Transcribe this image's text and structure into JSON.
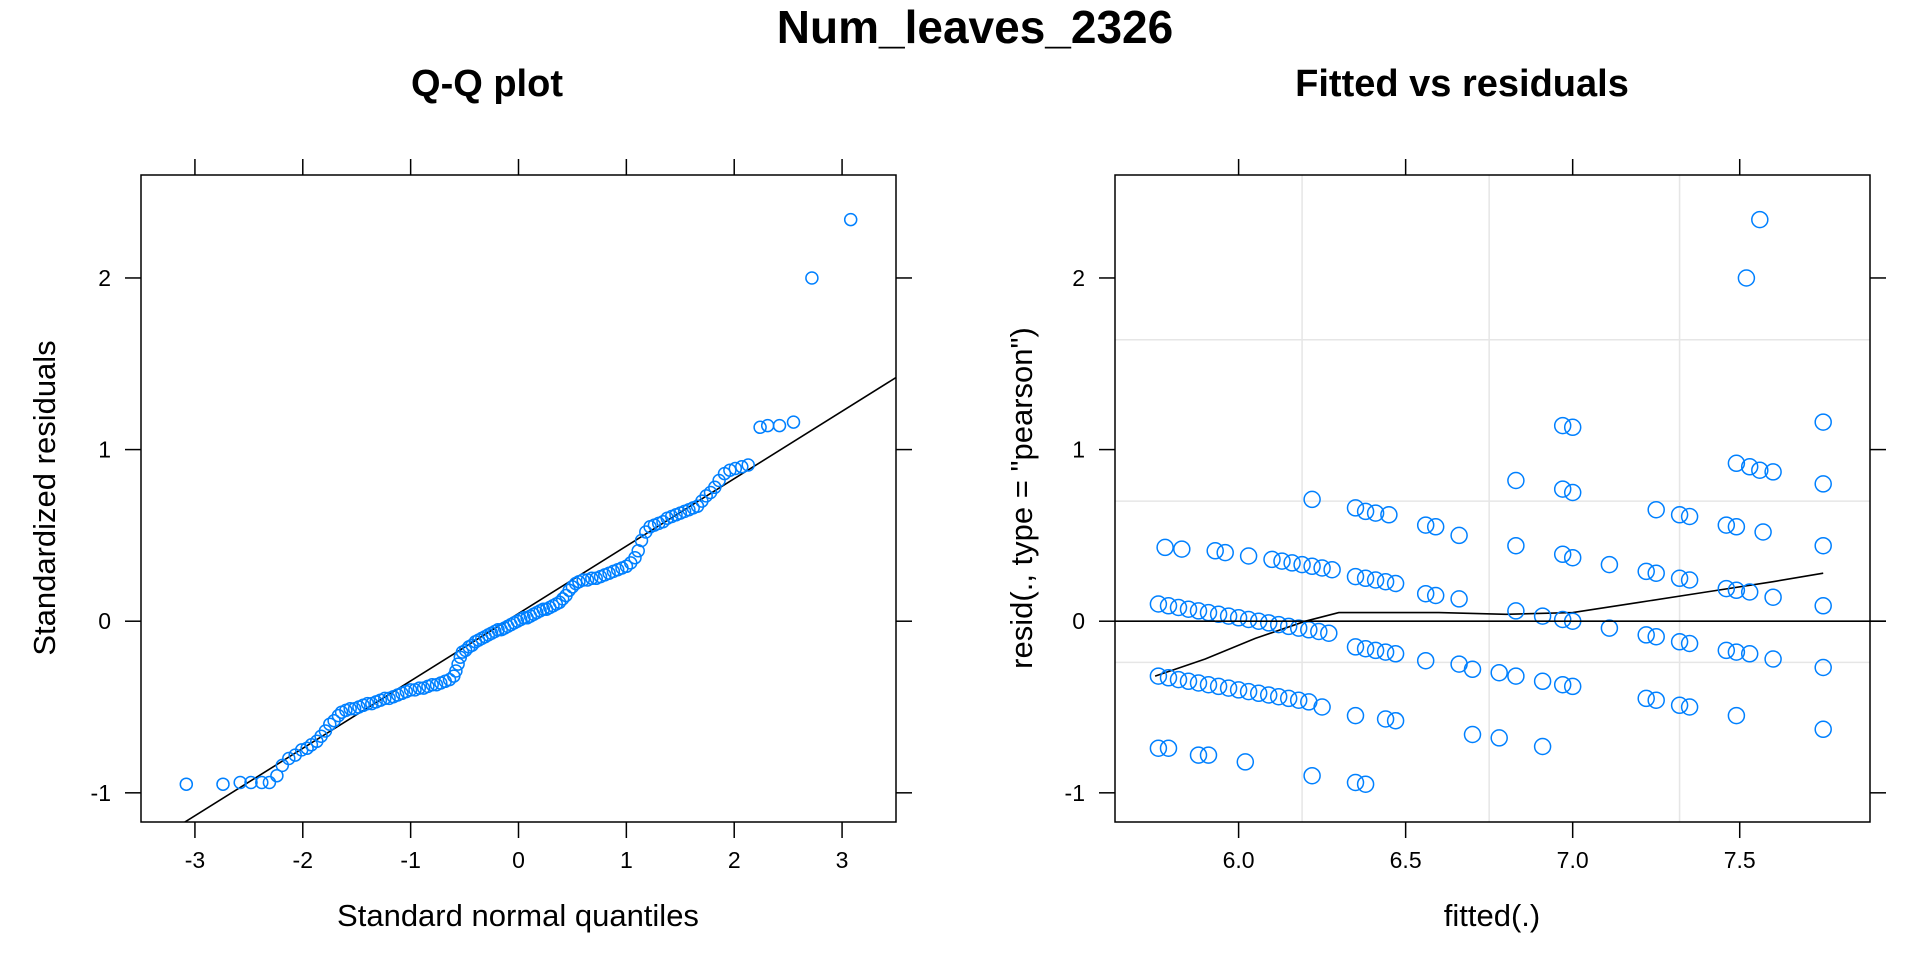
{
  "title": "Num_leaves_2326",
  "colors": {
    "points": "#0080ff",
    "lines": "#000000",
    "grid": "#e6e6e6"
  },
  "chart_data": [
    {
      "type": "scatter",
      "title": "Q-Q plot",
      "xlabel": "Standard normal quantiles",
      "ylabel": "Standardized residuals",
      "xlim": [
        -3.5,
        3.5
      ],
      "ylim": [
        -1.17,
        2.6
      ],
      "xticks": [
        -3,
        -2,
        -1,
        0,
        1,
        2,
        3
      ],
      "xtick_labels": [
        "-3",
        "-2",
        "-1",
        "0",
        "1",
        "2",
        "3"
      ],
      "yticks": [
        -1,
        0,
        1,
        2
      ],
      "ytick_labels": [
        "-1",
        "0",
        "1",
        "2"
      ],
      "grid": false,
      "reference_line": {
        "x": [
          -3.5,
          3.5
        ],
        "y": [
          -1.33,
          1.42
        ]
      },
      "points": [
        [
          -3.08,
          -0.95
        ],
        [
          -2.74,
          -0.95
        ],
        [
          -2.58,
          -0.94
        ],
        [
          -2.48,
          -0.94
        ],
        [
          -2.38,
          -0.94
        ],
        [
          -2.31,
          -0.94
        ],
        [
          -2.24,
          -0.9
        ],
        [
          -2.19,
          -0.84
        ],
        [
          -2.13,
          -0.8
        ],
        [
          -2.07,
          -0.78
        ],
        [
          -2.01,
          -0.75
        ],
        [
          -1.96,
          -0.74
        ],
        [
          -1.92,
          -0.72
        ],
        [
          -1.87,
          -0.7
        ],
        [
          -1.83,
          -0.67
        ],
        [
          -1.79,
          -0.64
        ],
        [
          -1.75,
          -0.6
        ],
        [
          -1.71,
          -0.58
        ],
        [
          -1.67,
          -0.55
        ],
        [
          -1.64,
          -0.53
        ],
        [
          -1.6,
          -0.52
        ],
        [
          -1.56,
          -0.51
        ],
        [
          -1.52,
          -0.51
        ],
        [
          -1.48,
          -0.5
        ],
        [
          -1.44,
          -0.49
        ],
        [
          -1.4,
          -0.48
        ],
        [
          -1.36,
          -0.48
        ],
        [
          -1.32,
          -0.47
        ],
        [
          -1.28,
          -0.46
        ],
        [
          -1.24,
          -0.45
        ],
        [
          -1.2,
          -0.45
        ],
        [
          -1.16,
          -0.44
        ],
        [
          -1.12,
          -0.43
        ],
        [
          -1.08,
          -0.42
        ],
        [
          -1.04,
          -0.41
        ],
        [
          -1.0,
          -0.4
        ],
        [
          -0.96,
          -0.4
        ],
        [
          -0.92,
          -0.39
        ],
        [
          -0.88,
          -0.39
        ],
        [
          -0.84,
          -0.38
        ],
        [
          -0.8,
          -0.37
        ],
        [
          -0.76,
          -0.37
        ],
        [
          -0.72,
          -0.36
        ],
        [
          -0.68,
          -0.35
        ],
        [
          -0.64,
          -0.34
        ],
        [
          -0.6,
          -0.32
        ],
        [
          -0.58,
          -0.29
        ],
        [
          -0.56,
          -0.25
        ],
        [
          -0.54,
          -0.21
        ],
        [
          -0.52,
          -0.18
        ],
        [
          -0.49,
          -0.17
        ],
        [
          -0.46,
          -0.15
        ],
        [
          -0.43,
          -0.14
        ],
        [
          -0.4,
          -0.12
        ],
        [
          -0.37,
          -0.11
        ],
        [
          -0.34,
          -0.1
        ],
        [
          -0.31,
          -0.09
        ],
        [
          -0.28,
          -0.08
        ],
        [
          -0.25,
          -0.07
        ],
        [
          -0.22,
          -0.06
        ],
        [
          -0.19,
          -0.05
        ],
        [
          -0.16,
          -0.05
        ],
        [
          -0.13,
          -0.04
        ],
        [
          -0.1,
          -0.03
        ],
        [
          -0.07,
          -0.02
        ],
        [
          -0.04,
          -0.01
        ],
        [
          -0.01,
          0.0
        ],
        [
          0.02,
          0.01
        ],
        [
          0.05,
          0.02
        ],
        [
          0.08,
          0.02
        ],
        [
          0.11,
          0.03
        ],
        [
          0.14,
          0.04
        ],
        [
          0.17,
          0.05
        ],
        [
          0.2,
          0.06
        ],
        [
          0.23,
          0.07
        ],
        [
          0.26,
          0.07
        ],
        [
          0.29,
          0.08
        ],
        [
          0.32,
          0.09
        ],
        [
          0.35,
          0.1
        ],
        [
          0.38,
          0.11
        ],
        [
          0.41,
          0.13
        ],
        [
          0.44,
          0.15
        ],
        [
          0.47,
          0.18
        ],
        [
          0.5,
          0.2
        ],
        [
          0.53,
          0.22
        ],
        [
          0.56,
          0.23
        ],
        [
          0.6,
          0.24
        ],
        [
          0.64,
          0.24
        ],
        [
          0.68,
          0.25
        ],
        [
          0.72,
          0.25
        ],
        [
          0.76,
          0.26
        ],
        [
          0.8,
          0.27
        ],
        [
          0.84,
          0.28
        ],
        [
          0.88,
          0.29
        ],
        [
          0.92,
          0.3
        ],
        [
          0.96,
          0.31
        ],
        [
          1.0,
          0.32
        ],
        [
          1.04,
          0.34
        ],
        [
          1.08,
          0.37
        ],
        [
          1.11,
          0.41
        ],
        [
          1.14,
          0.47
        ],
        [
          1.18,
          0.52
        ],
        [
          1.22,
          0.55
        ],
        [
          1.26,
          0.56
        ],
        [
          1.3,
          0.57
        ],
        [
          1.34,
          0.58
        ],
        [
          1.38,
          0.6
        ],
        [
          1.42,
          0.61
        ],
        [
          1.46,
          0.62
        ],
        [
          1.5,
          0.63
        ],
        [
          1.54,
          0.64
        ],
        [
          1.58,
          0.65
        ],
        [
          1.62,
          0.66
        ],
        [
          1.66,
          0.67
        ],
        [
          1.7,
          0.7
        ],
        [
          1.74,
          0.73
        ],
        [
          1.78,
          0.75
        ],
        [
          1.82,
          0.78
        ],
        [
          1.86,
          0.82
        ],
        [
          1.91,
          0.86
        ],
        [
          1.96,
          0.88
        ],
        [
          2.01,
          0.89
        ],
        [
          2.07,
          0.9
        ],
        [
          2.13,
          0.91
        ],
        [
          2.24,
          1.13
        ],
        [
          2.31,
          1.14
        ],
        [
          2.42,
          1.14
        ],
        [
          2.55,
          1.16
        ],
        [
          2.72,
          2.0
        ],
        [
          3.08,
          2.34
        ]
      ]
    },
    {
      "type": "scatter",
      "title": "Fitted vs residuals",
      "xlabel": "fitted(.)",
      "ylabel": "resid(., type = \"pearson\")",
      "xlim": [
        5.63,
        7.89
      ],
      "ylim": [
        -1.17,
        2.6
      ],
      "xticks": [
        6.0,
        6.5,
        7.0,
        7.5
      ],
      "xtick_labels": [
        "6.0",
        "6.5",
        "7.0",
        "7.5"
      ],
      "yticks": [
        -1,
        0,
        1,
        2
      ],
      "ytick_labels": [
        "-1",
        "0",
        "1",
        "2"
      ],
      "grid": true,
      "grid_x": [
        6.19,
        6.75,
        7.32
      ],
      "grid_y": [
        -0.24,
        0.7,
        1.64
      ],
      "hline": 0,
      "smooth_line": {
        "x": [
          5.75,
          5.9,
          6.05,
          6.2,
          6.3,
          6.4,
          6.6,
          6.8,
          7.0,
          7.2,
          7.4,
          7.6,
          7.75
        ],
        "y": [
          -0.32,
          -0.22,
          -0.1,
          0.0,
          0.05,
          0.05,
          0.05,
          0.04,
          0.05,
          0.11,
          0.17,
          0.23,
          0.28
        ]
      },
      "points": [
        [
          5.76,
          0.1
        ],
        [
          5.79,
          0.09
        ],
        [
          5.82,
          0.08
        ],
        [
          5.85,
          0.07
        ],
        [
          5.88,
          0.06
        ],
        [
          5.91,
          0.05
        ],
        [
          5.94,
          0.04
        ],
        [
          5.97,
          0.03
        ],
        [
          6.0,
          0.02
        ],
        [
          6.03,
          0.01
        ],
        [
          6.06,
          0.0
        ],
        [
          6.09,
          -0.01
        ],
        [
          6.12,
          -0.02
        ],
        [
          6.15,
          -0.03
        ],
        [
          6.18,
          -0.04
        ],
        [
          6.21,
          -0.05
        ],
        [
          6.24,
          -0.06
        ],
        [
          6.27,
          -0.07
        ],
        [
          5.76,
          -0.32
        ],
        [
          5.79,
          -0.33
        ],
        [
          5.82,
          -0.34
        ],
        [
          5.85,
          -0.35
        ],
        [
          5.88,
          -0.36
        ],
        [
          5.91,
          -0.37
        ],
        [
          5.94,
          -0.38
        ],
        [
          5.97,
          -0.39
        ],
        [
          6.0,
          -0.4
        ],
        [
          6.03,
          -0.41
        ],
        [
          6.06,
          -0.42
        ],
        [
          6.09,
          -0.43
        ],
        [
          6.12,
          -0.44
        ],
        [
          6.15,
          -0.45
        ],
        [
          6.18,
          -0.46
        ],
        [
          6.21,
          -0.47
        ],
        [
          6.25,
          -0.5
        ],
        [
          5.78,
          0.43
        ],
        [
          5.83,
          0.42
        ],
        [
          5.93,
          0.41
        ],
        [
          5.96,
          0.4
        ],
        [
          6.03,
          0.38
        ],
        [
          6.1,
          0.36
        ],
        [
          6.13,
          0.35
        ],
        [
          6.16,
          0.34
        ],
        [
          6.19,
          0.33
        ],
        [
          6.22,
          0.32
        ],
        [
          6.25,
          0.31
        ],
        [
          6.28,
          0.3
        ],
        [
          5.76,
          -0.74
        ],
        [
          5.79,
          -0.74
        ],
        [
          5.88,
          -0.78
        ],
        [
          5.91,
          -0.78
        ],
        [
          6.02,
          -0.82
        ],
        [
          6.22,
          0.71
        ],
        [
          6.22,
          -0.9
        ],
        [
          6.35,
          -0.94
        ],
        [
          6.38,
          -0.95
        ],
        [
          6.35,
          0.66
        ],
        [
          6.38,
          0.64
        ],
        [
          6.41,
          0.63
        ],
        [
          6.45,
          0.62
        ],
        [
          6.35,
          0.26
        ],
        [
          6.38,
          0.25
        ],
        [
          6.41,
          0.24
        ],
        [
          6.44,
          0.23
        ],
        [
          6.47,
          0.22
        ],
        [
          6.35,
          -0.15
        ],
        [
          6.38,
          -0.16
        ],
        [
          6.41,
          -0.17
        ],
        [
          6.44,
          -0.18
        ],
        [
          6.47,
          -0.19
        ],
        [
          6.35,
          -0.55
        ],
        [
          6.44,
          -0.57
        ],
        [
          6.47,
          -0.58
        ],
        [
          6.56,
          0.56
        ],
        [
          6.59,
          0.55
        ],
        [
          6.56,
          0.16
        ],
        [
          6.59,
          0.15
        ],
        [
          6.56,
          -0.23
        ],
        [
          6.66,
          0.5
        ],
        [
          6.66,
          0.13
        ],
        [
          6.66,
          -0.25
        ],
        [
          6.7,
          -0.28
        ],
        [
          6.7,
          -0.66
        ],
        [
          6.78,
          -0.68
        ],
        [
          6.83,
          0.82
        ],
        [
          6.83,
          0.44
        ],
        [
          6.83,
          0.06
        ],
        [
          6.83,
          -0.32
        ],
        [
          6.78,
          -0.3
        ],
        [
          6.91,
          -0.73
        ],
        [
          6.91,
          0.03
        ],
        [
          6.91,
          -0.35
        ],
        [
          6.97,
          1.14
        ],
        [
          7.0,
          1.13
        ],
        [
          6.97,
          0.77
        ],
        [
          7.0,
          0.75
        ],
        [
          6.97,
          0.39
        ],
        [
          7.0,
          0.37
        ],
        [
          6.97,
          0.01
        ],
        [
          7.0,
          0.0
        ],
        [
          6.97,
          -0.37
        ],
        [
          7.0,
          -0.38
        ],
        [
          7.11,
          0.33
        ],
        [
          7.11,
          -0.04
        ],
        [
          7.22,
          0.29
        ],
        [
          7.25,
          0.65
        ],
        [
          7.25,
          0.28
        ],
        [
          7.22,
          -0.08
        ],
        [
          7.25,
          -0.09
        ],
        [
          7.22,
          -0.45
        ],
        [
          7.25,
          -0.46
        ],
        [
          7.32,
          0.62
        ],
        [
          7.35,
          0.61
        ],
        [
          7.32,
          0.25
        ],
        [
          7.35,
          0.24
        ],
        [
          7.32,
          -0.12
        ],
        [
          7.35,
          -0.13
        ],
        [
          7.32,
          -0.49
        ],
        [
          7.35,
          -0.5
        ],
        [
          7.46,
          0.56
        ],
        [
          7.49,
          0.55
        ],
        [
          7.46,
          0.19
        ],
        [
          7.49,
          0.18
        ],
        [
          7.46,
          -0.17
        ],
        [
          7.49,
          -0.18
        ],
        [
          7.49,
          0.92
        ],
        [
          7.53,
          0.9
        ],
        [
          7.56,
          0.88
        ],
        [
          7.6,
          0.87
        ],
        [
          7.53,
          0.17
        ],
        [
          7.53,
          -0.19
        ],
        [
          7.57,
          0.52
        ],
        [
          7.6,
          0.14
        ],
        [
          7.6,
          -0.22
        ],
        [
          7.49,
          -0.55
        ],
        [
          7.75,
          1.16
        ],
        [
          7.75,
          0.8
        ],
        [
          7.75,
          0.44
        ],
        [
          7.75,
          0.09
        ],
        [
          7.75,
          -0.27
        ],
        [
          7.75,
          -0.63
        ],
        [
          7.52,
          2.0
        ],
        [
          7.56,
          2.34
        ]
      ]
    }
  ]
}
